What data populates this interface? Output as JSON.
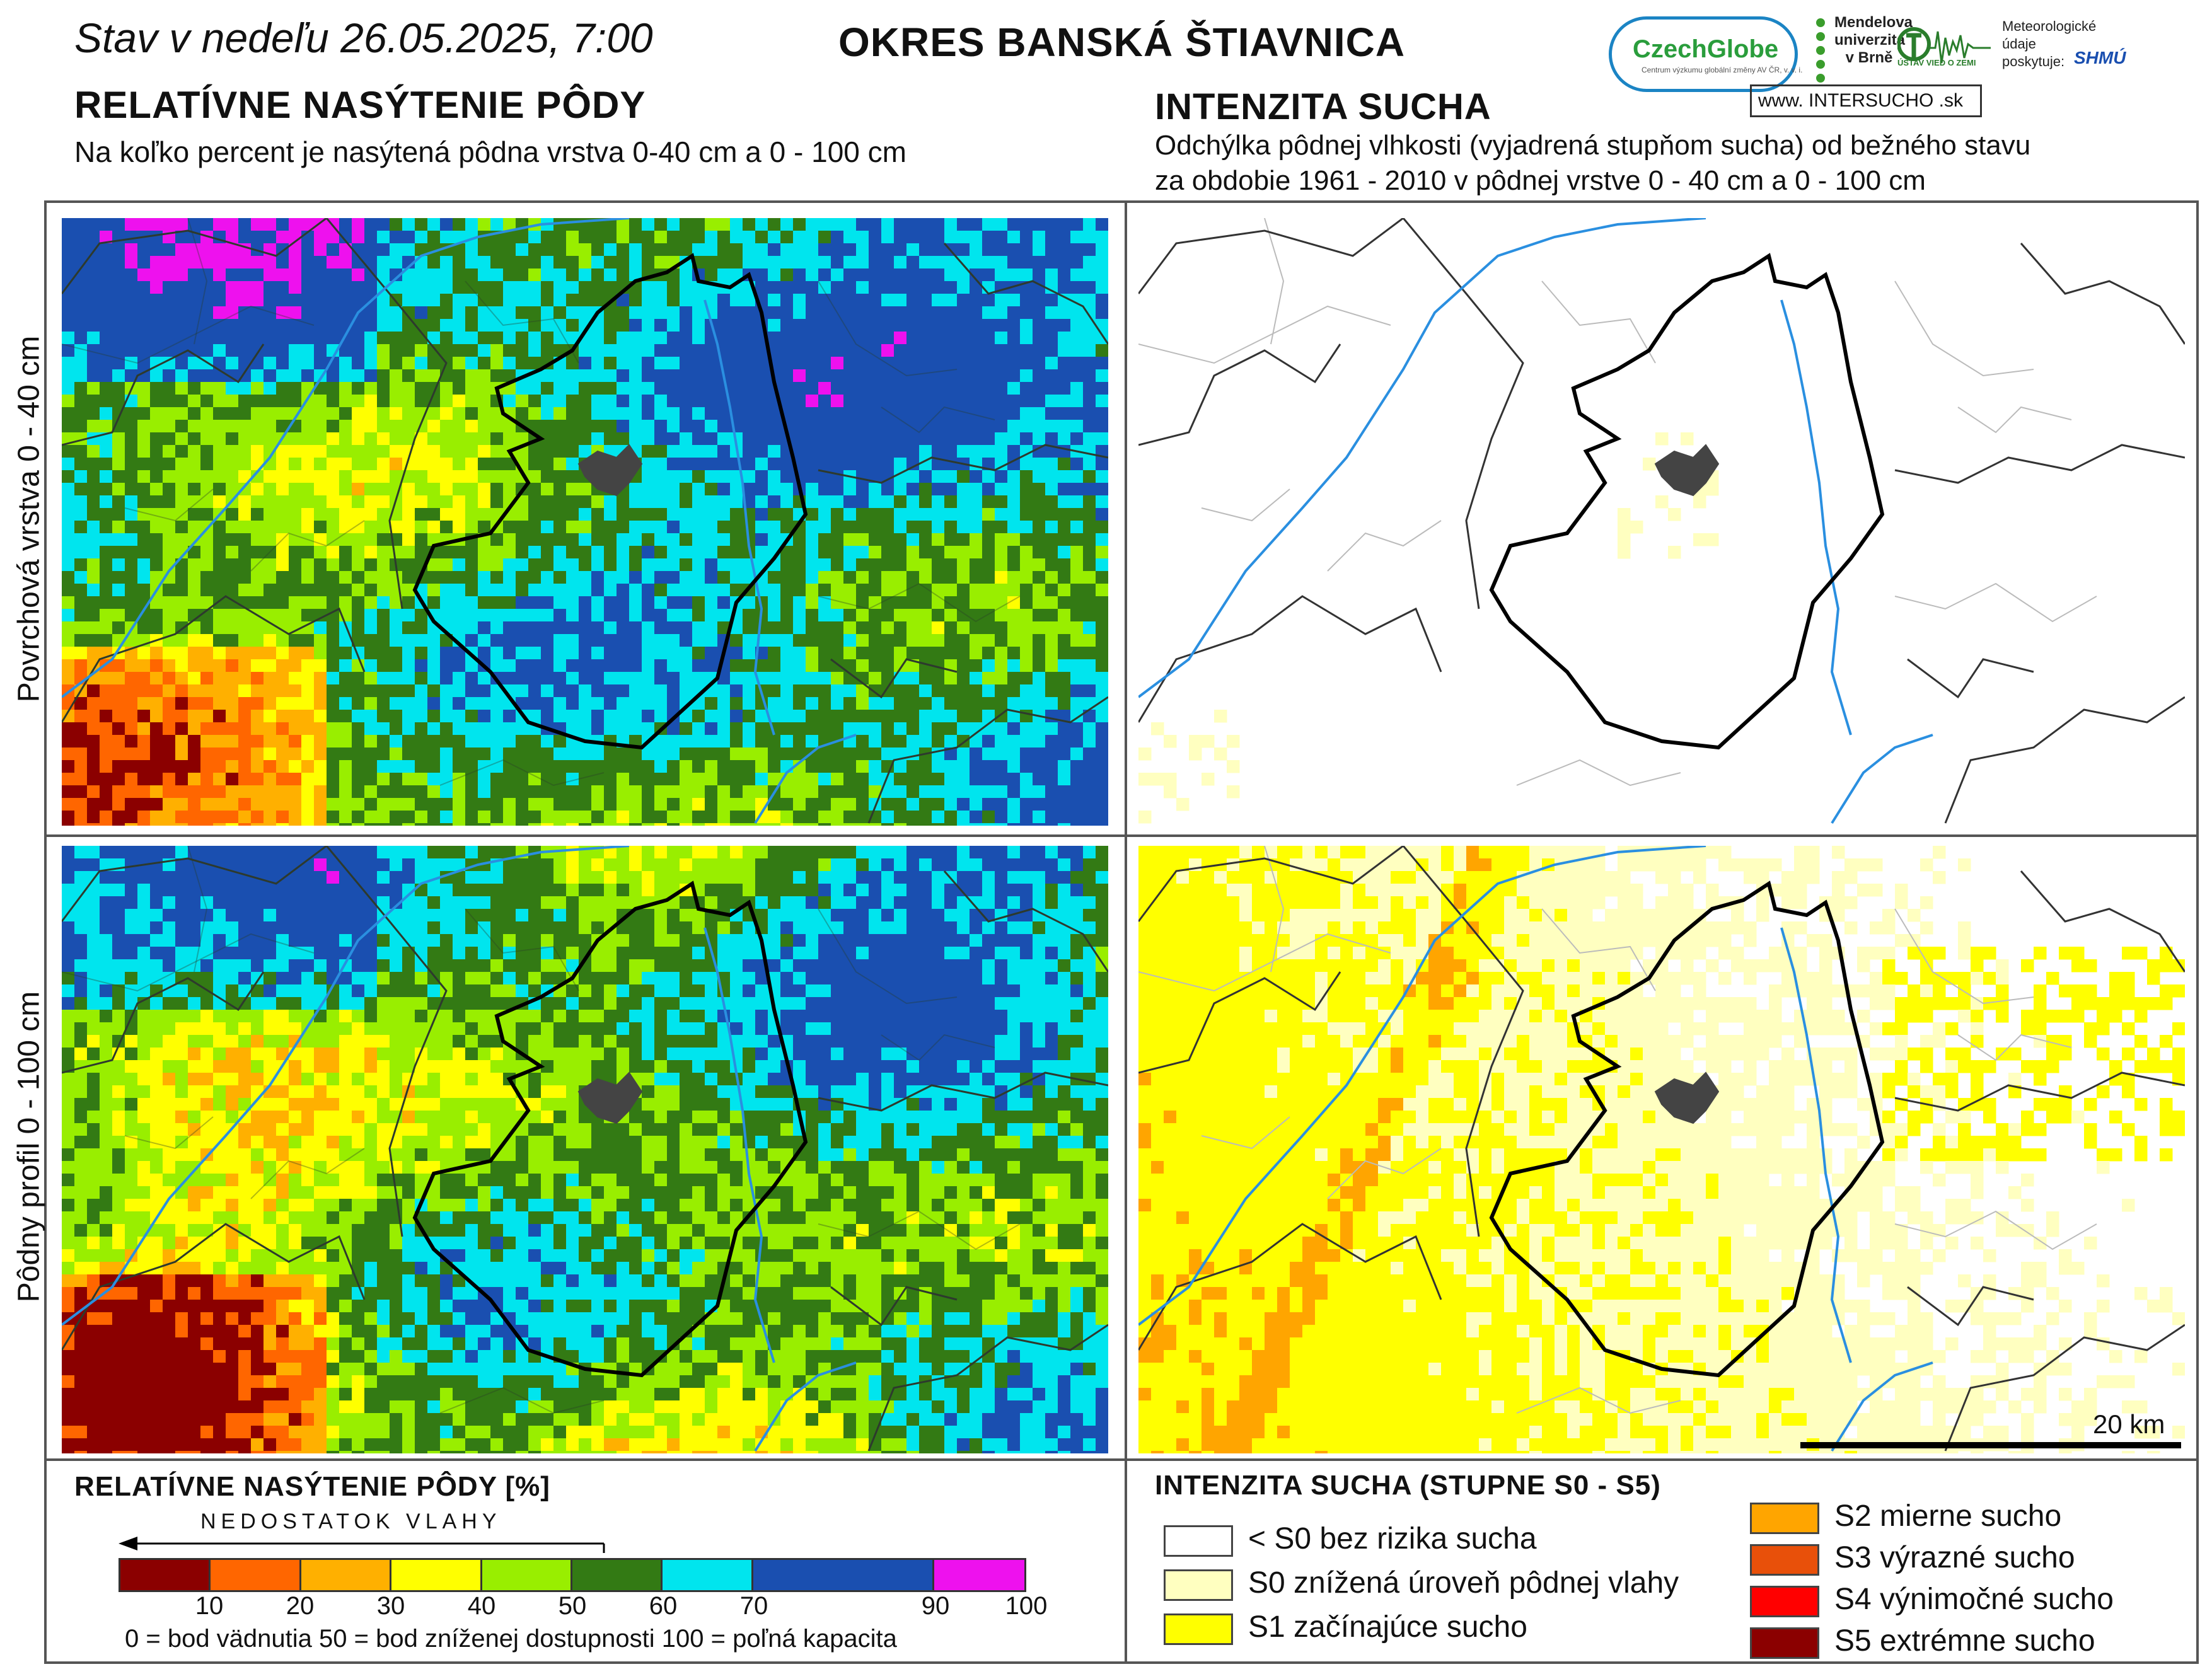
{
  "header": {
    "date_text": "Stav v nedeľu 26.05.2025, 7:00",
    "district": "OKRES  BANSKÁ ŠTIAVNICA"
  },
  "left": {
    "title": "RELATÍVNE NASÝTENIE PÔDY",
    "subtitle": "Na koľko percent je nasýtená pôdna vrstva 0-40 cm a 0 - 100 cm"
  },
  "right": {
    "title": "INTENZITA SUCHA",
    "subtitle_line1": "Odchýlka pôdnej vlhkosti (vyjadrená stupňom sucha) od bežného stavu",
    "subtitle_line2": "za obdobie 1961 - 2010 v pôdnej vrstve 0 - 40 cm a 0 - 100 cm"
  },
  "row_labels": {
    "top": "Povrchová vrstva 0 - 40 cm",
    "bottom": "Pôdny profil 0 - 100 cm"
  },
  "logos": {
    "czechglobe": "CzechGlobe",
    "czechglobe_sub": "Centrum výzkumu globální změny AV ČR, v. v. i.",
    "mendel": "Mendelova univerzita v Brně",
    "uvz": "ÚSTAV VIED O ZEMI",
    "meteo": "Meteorologické údaje poskytuje:",
    "shmu": "SHMÚ",
    "intersucho": "www. INTERSUCHO .sk"
  },
  "legend_saturation": {
    "title": "RELATÍVNE NASÝTENIE PÔDY [%]",
    "lack_label": "NEDOSTATOK VLAHY",
    "bins": [
      {
        "from": 0,
        "to": 10,
        "color": "#8b0000"
      },
      {
        "from": 10,
        "to": 20,
        "color": "#ff6600"
      },
      {
        "from": 20,
        "to": 30,
        "color": "#ffb000"
      },
      {
        "from": 30,
        "to": 40,
        "color": "#ffff00"
      },
      {
        "from": 40,
        "to": 50,
        "color": "#99ee00"
      },
      {
        "from": 50,
        "to": 60,
        "color": "#337a14"
      },
      {
        "from": 60,
        "to": 70,
        "color": "#00e5ee"
      },
      {
        "from": 70,
        "to": 90,
        "color": "#1a4fb0"
      },
      {
        "from": 90,
        "to": 100,
        "color": "#ee11ee"
      }
    ],
    "ticks": [
      "10",
      "20",
      "30",
      "40",
      "50",
      "60",
      "70",
      "90",
      "100"
    ],
    "note": "0 = bod vädnutia   50 = bod zníženej dostupnosti   100 = poľná kapacita"
  },
  "legend_drought": {
    "title": "INTENZITA SUCHA (STUPNE S0 - S5)",
    "items": [
      {
        "label": "< S0 bez rizika sucha",
        "color": "#ffffff"
      },
      {
        "label": "S0 znížená úroveň pôdnej vlahy",
        "color": "#ffffc0"
      },
      {
        "label": "S1 začínajúce sucho",
        "color": "#ffff00"
      },
      {
        "label": "S2 mierne sucho",
        "color": "#ffa500"
      },
      {
        "label": "S3 výrazné sucho",
        "color": "#e8500a"
      },
      {
        "label": "S4 výnimočné sucho",
        "color": "#ff0000"
      },
      {
        "label": "S5 extrémne sucho",
        "color": "#8b0000"
      }
    ]
  },
  "scale": {
    "label": "20 km"
  }
}
